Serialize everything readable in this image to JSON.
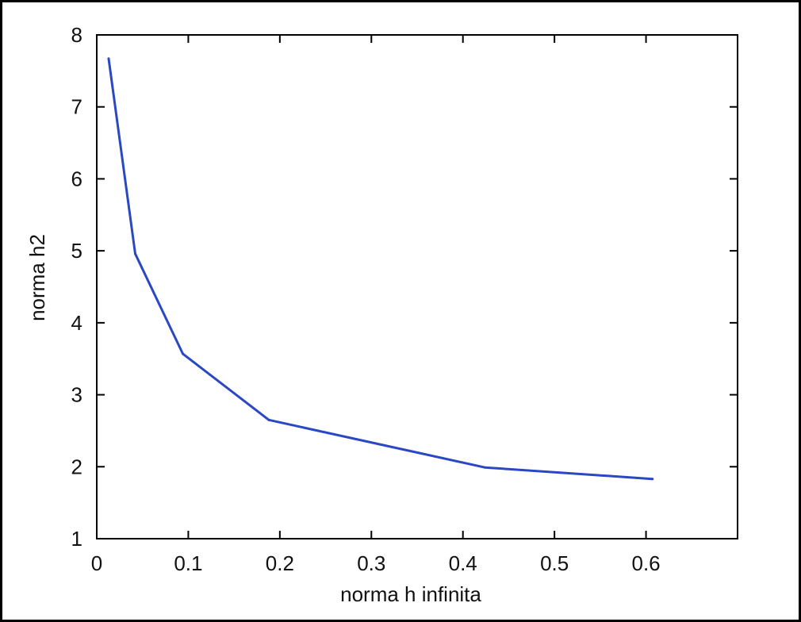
{
  "chart_data": {
    "type": "line",
    "title": "",
    "xlabel": "norma h infinita",
    "ylabel": "norma h2",
    "xlim": [
      0,
      0.7
    ],
    "ylim": [
      1,
      8
    ],
    "xticks": [
      0,
      0.1,
      0.2,
      0.3,
      0.4,
      0.5,
      0.6
    ],
    "xtick_labels": [
      "0",
      "0.1",
      "0.2",
      "0.3",
      "0.4",
      "0.5",
      "0.6"
    ],
    "yticks": [
      1,
      2,
      3,
      4,
      5,
      6,
      7,
      8
    ],
    "ytick_labels": [
      "1",
      "2",
      "3",
      "4",
      "5",
      "6",
      "7",
      "8"
    ],
    "grid": false,
    "legend": "none",
    "series": [
      {
        "color": "#2a47c4",
        "x": [
          0.013,
          0.042,
          0.094,
          0.188,
          0.424,
          0.607
        ],
        "y": [
          7.67,
          4.96,
          3.57,
          2.65,
          1.99,
          1.83
        ]
      }
    ]
  }
}
